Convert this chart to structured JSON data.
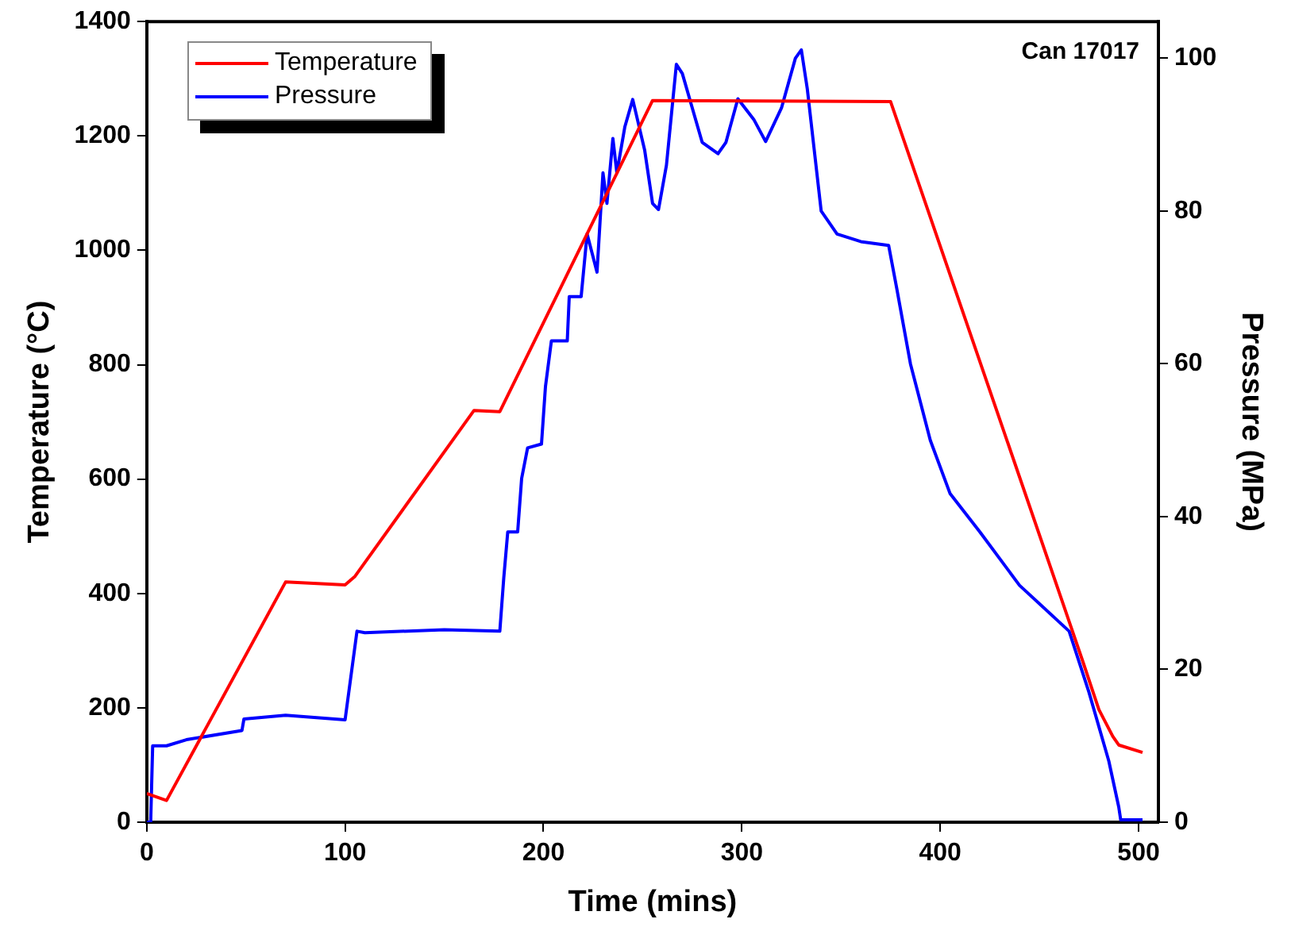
{
  "chart_data": {
    "type": "line",
    "xlabel": "Time (mins)",
    "ylabel": "Temperature (°C)",
    "y2label": "Pressure (MPa)",
    "annotations": [
      "Can 17017"
    ],
    "legend": "top left",
    "grid": false,
    "marker": "none",
    "line_style": "solid",
    "xlim": [
      0,
      510
    ],
    "xticks": [
      0,
      100,
      200,
      300,
      400,
      500
    ],
    "ylim": [
      0,
      1400
    ],
    "yticks": [
      0,
      200,
      400,
      600,
      800,
      1000,
      1200,
      1400
    ],
    "y2lim": [
      0,
      104.8
    ],
    "y2ticks": [
      0,
      20,
      40,
      60,
      80,
      100
    ],
    "series": [
      {
        "name": "Temperature",
        "color": "#ff0000",
        "x": [
          0,
          10,
          70,
          100,
          105,
          165,
          178,
          255,
          375,
          465,
          472,
          480,
          487,
          490,
          502
        ],
        "values": [
          50,
          38,
          420,
          415,
          430,
          720,
          718,
          1262,
          1260,
          351,
          280,
          197,
          150,
          135,
          122
        ]
      },
      {
        "name": "Pressure",
        "color": "#0000ff",
        "axis": "y2",
        "x": [
          0,
          2,
          3,
          10,
          20,
          48,
          49,
          70,
          100,
          106,
          110,
          150,
          178,
          180,
          182,
          187,
          189,
          192,
          199,
          201,
          204,
          212,
          213,
          219,
          222,
          227,
          230,
          232,
          235,
          237,
          241,
          245,
          251,
          255,
          258,
          262,
          267,
          270,
          280,
          288,
          292,
          298,
          303,
          306,
          312,
          320,
          327,
          330,
          333,
          340,
          348,
          360,
          374,
          378,
          385,
          395,
          405,
          420,
          440,
          465,
          475,
          485,
          490,
          491,
          502
        ],
        "values": [
          0,
          0,
          10,
          10,
          10.8,
          12,
          13.5,
          14,
          13.4,
          25,
          24.8,
          25.2,
          25,
          32,
          38,
          38,
          45,
          49,
          49.5,
          57,
          63,
          63,
          68.8,
          68.8,
          77,
          72,
          85,
          81,
          89.5,
          85,
          91,
          94.6,
          88,
          81,
          80.2,
          86,
          99.2,
          98,
          89,
          87.5,
          89,
          94.7,
          93,
          92,
          89.1,
          93.5,
          100,
          101.1,
          96,
          80,
          77,
          76,
          75.5,
          70,
          60,
          50,
          43,
          38,
          31,
          25,
          17,
          8,
          2,
          0.3,
          0.3
        ]
      }
    ]
  }
}
